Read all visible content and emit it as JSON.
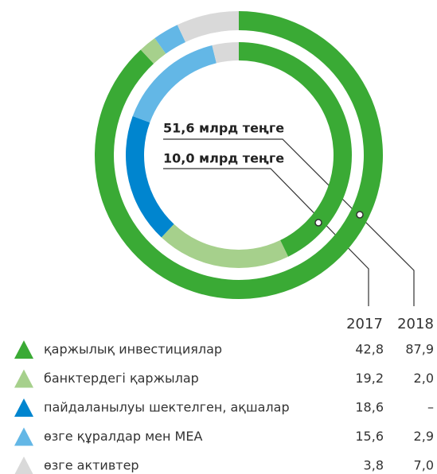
{
  "chart_data": {
    "type": "donut",
    "categories": [
      "қаржылық инвестициялар",
      "банктердегі қаржылар",
      "пайдаланылуы шектелген, ақшалар",
      "өзге құралдар мен МЕА",
      "өзге активтер"
    ],
    "colors": [
      "#3aaa35",
      "#a6d08c",
      "#0085cf",
      "#63b7e6",
      "#d9d9d9"
    ],
    "series": [
      {
        "name": "2017",
        "values": [
          42.8,
          19.2,
          18.6,
          15.6,
          3.8
        ],
        "value_labels": [
          "42,8",
          "19,2",
          "18,6",
          "15,6",
          "3,8"
        ]
      },
      {
        "name": "2018",
        "values": [
          87.9,
          2.0,
          null,
          2.9,
          7.0
        ],
        "value_labels": [
          "87,9",
          "2,0",
          "–",
          "2,9",
          "7,0"
        ]
      }
    ],
    "annotations": [
      "10,0 млрд теңге",
      "51,6 млрд теңге"
    ]
  }
}
